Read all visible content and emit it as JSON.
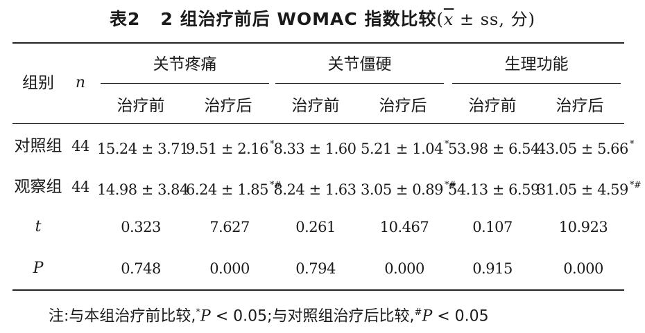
{
  "title": {
    "label": "表2",
    "text": "2 组治疗前后 WOMAC 指数比较",
    "unit_open": "(",
    "unit_mean": "x",
    "unit_rest": " ± ss, 分)"
  },
  "header": {
    "group": "组别",
    "n": "n",
    "categories": [
      "关节疼痛",
      "关节僵硬",
      "生理功能"
    ],
    "subcols": [
      "治疗前",
      "治疗后",
      "治疗前",
      "治疗后",
      "治疗前",
      "治疗后"
    ]
  },
  "rows": [
    {
      "label": "对照组",
      "n": "44",
      "cells": [
        {
          "v": "15.24 ± 3.71",
          "mark": ""
        },
        {
          "v": "9.51 ± 2.16",
          "mark": "*"
        },
        {
          "v": "8.33 ± 1.60",
          "mark": ""
        },
        {
          "v": "5.21 ± 1.04",
          "mark": "*"
        },
        {
          "v": "53.98 ± 6.54",
          "mark": ""
        },
        {
          "v": "43.05 ± 5.66",
          "mark": "*"
        }
      ]
    },
    {
      "label": "观察组",
      "n": "44",
      "cells": [
        {
          "v": "14.98 ± 3.84",
          "mark": ""
        },
        {
          "v": "6.24 ± 1.85",
          "mark": "*#"
        },
        {
          "v": "8.24 ± 1.63",
          "mark": ""
        },
        {
          "v": "3.05 ± 0.89",
          "mark": "*#"
        },
        {
          "v": "54.13 ± 6.59",
          "mark": ""
        },
        {
          "v": "31.05 ± 4.59",
          "mark": "*#"
        }
      ]
    },
    {
      "label": "t",
      "n": "",
      "cells": [
        {
          "v": "0.323",
          "mark": ""
        },
        {
          "v": "7.627",
          "mark": ""
        },
        {
          "v": "0.261",
          "mark": ""
        },
        {
          "v": "10.467",
          "mark": ""
        },
        {
          "v": "0.107",
          "mark": ""
        },
        {
          "v": "10.923",
          "mark": ""
        }
      ]
    },
    {
      "label": "P",
      "n": "",
      "cells": [
        {
          "v": "0.748",
          "mark": ""
        },
        {
          "v": "0.000",
          "mark": ""
        },
        {
          "v": "0.794",
          "mark": ""
        },
        {
          "v": "0.000",
          "mark": ""
        },
        {
          "v": "0.915",
          "mark": ""
        },
        {
          "v": "0.000",
          "mark": ""
        }
      ]
    }
  ],
  "note": {
    "prefix": "注:与本组治疗前比较,",
    "mark1": "*",
    "p1": "P",
    "c1": " < 0.05;与对照组治疗后比较,",
    "mark2": "#",
    "p2": "P",
    "c2": " < 0.05"
  }
}
